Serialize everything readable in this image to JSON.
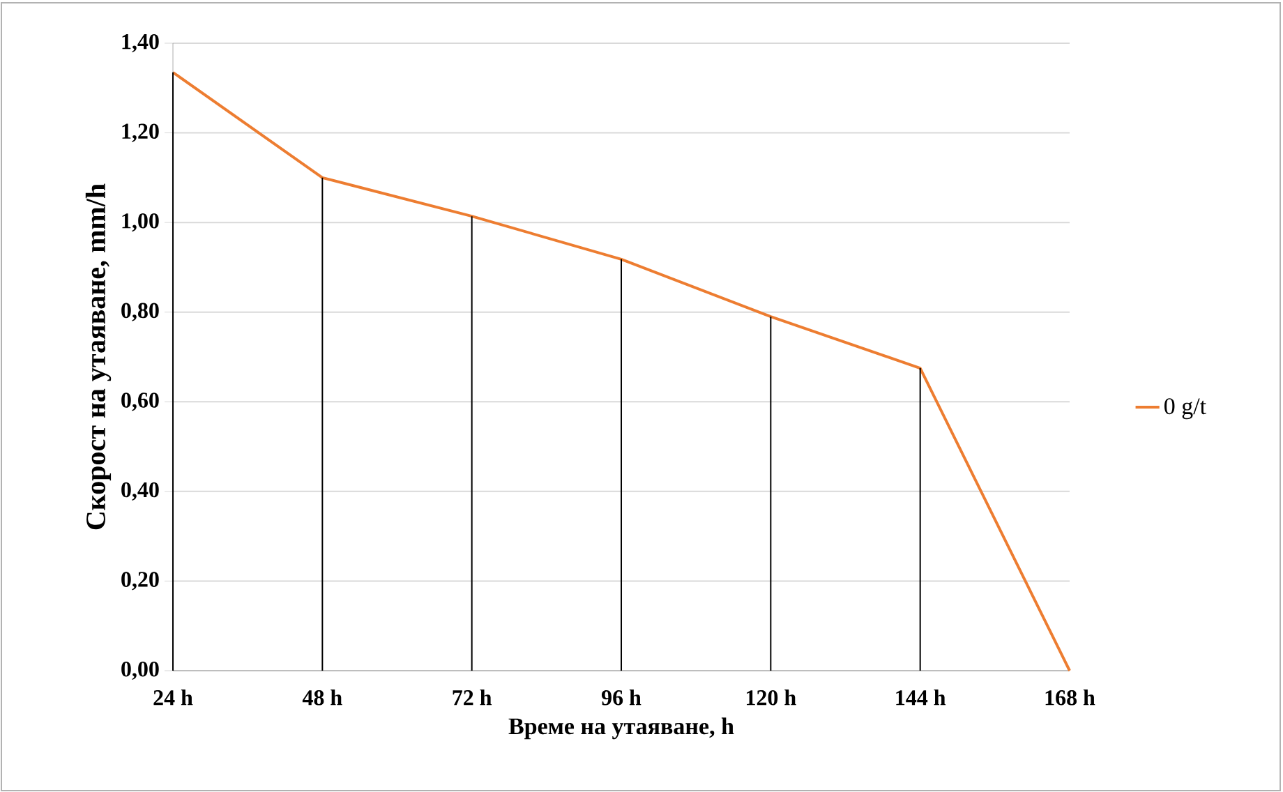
{
  "chart_data": {
    "type": "line",
    "xlabel": "Време на утаяване, h",
    "ylabel": "Скорост на утаяване, mm/h",
    "categories": [
      "24 h",
      "48 h",
      "72 h",
      "96 h",
      "120 h",
      "144 h",
      "168 h"
    ],
    "series": [
      {
        "name": "0 g/t",
        "color": "#ed7d31",
        "values": [
          1.335,
          1.1,
          1.014,
          0.918,
          0.79,
          0.675,
          0.0
        ]
      },
      {
        "type": "bar",
        "color": "#000000",
        "values": [
          1.335,
          1.1,
          1.014,
          0.918,
          0.79,
          0.675,
          0.0
        ]
      }
    ],
    "ylim": [
      0,
      1.4
    ],
    "yticks": [
      {
        "value": 0,
        "label": "0,00"
      },
      {
        "value": 0.2,
        "label": "0,20"
      },
      {
        "value": 0.4,
        "label": "0,40"
      },
      {
        "value": 0.6,
        "label": "0,60"
      },
      {
        "value": 0.8,
        "label": "0,80"
      },
      {
        "value": 1.0,
        "label": "1,00"
      },
      {
        "value": 1.2,
        "label": "1,20"
      },
      {
        "value": 1.4,
        "label": "1,40"
      }
    ],
    "grid": "y",
    "legend": "right",
    "marker": "none",
    "line_style": "solid"
  }
}
